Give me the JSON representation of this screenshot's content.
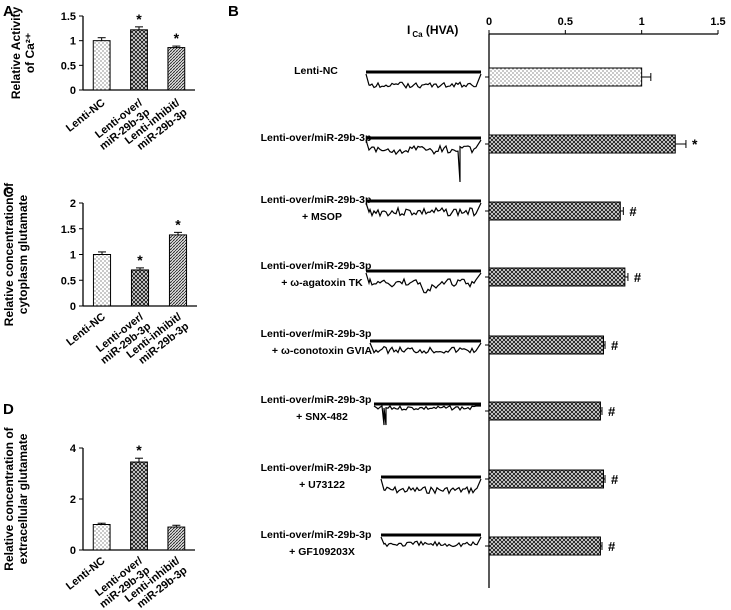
{
  "panels": {
    "A": "A",
    "B": "B",
    "C": "C",
    "D": "D"
  },
  "chart_data": [
    {
      "id": "A",
      "type": "bar",
      "ylabel_lines": [
        "Relative Activity",
        "of Ca²⁺"
      ],
      "ylim": [
        0,
        1.5
      ],
      "yticks": [
        "0",
        "0.5",
        "1",
        "1.5"
      ],
      "categories": [
        [
          "Lenti-NC"
        ],
        [
          "Lenti-over/",
          "miR-29b-3p"
        ],
        [
          "Lenti-inhibit/",
          "miR-29b-3p"
        ]
      ],
      "values": [
        1.0,
        1.22,
        0.86
      ],
      "errors": [
        0.06,
        0.06,
        0.03
      ],
      "markers": [
        "",
        "*",
        "*"
      ],
      "patterns": [
        "dots",
        "cross",
        "hatch"
      ]
    },
    {
      "id": "C",
      "type": "bar",
      "ylabel_lines": [
        "Relative concentration of",
        "cytoplasm glutamate"
      ],
      "ylim": [
        0,
        2
      ],
      "yticks": [
        "0",
        "0.5",
        "1",
        "1.5",
        "2"
      ],
      "categories": [
        [
          "Lenti-NC"
        ],
        [
          "Lenti-over/",
          "miR-29b-3p"
        ],
        [
          "Lenti-inhibit/",
          "miR-29b-3p"
        ]
      ],
      "values": [
        1.0,
        0.7,
        1.38
      ],
      "errors": [
        0.05,
        0.04,
        0.05
      ],
      "markers": [
        "",
        "*",
        "*"
      ],
      "patterns": [
        "dots",
        "cross",
        "hatch"
      ]
    },
    {
      "id": "D",
      "type": "bar",
      "ylabel_lines": [
        "Relative concentration of",
        "extracellular glutamate"
      ],
      "ylim": [
        0,
        4
      ],
      "yticks": [
        "0",
        "2",
        "4"
      ],
      "categories": [
        [
          "Lenti-NC"
        ],
        [
          "Lenti-over/",
          "miR-29b-3p"
        ],
        [
          "Lenti-inhibit/",
          "miR-29b-3p"
        ]
      ],
      "values": [
        1.0,
        3.45,
        0.9
      ],
      "errors": [
        0.05,
        0.15,
        0.07
      ],
      "markers": [
        "",
        "*",
        ""
      ],
      "patterns": [
        "dots",
        "cross",
        "hatch"
      ]
    },
    {
      "id": "B",
      "type": "bar",
      "orientation": "horizontal",
      "title": "I Ca (HVA)",
      "title_main": "I",
      "title_sub": "Ca",
      "title_rest": " (HVA)",
      "xlim": [
        0,
        1.5
      ],
      "xticks": [
        "0",
        "0.5",
        "1",
        "1.5"
      ],
      "rows": [
        {
          "label": [
            "Lenti-NC"
          ],
          "value": 1.0,
          "error": 0.06,
          "marker": "",
          "pattern": "dots"
        },
        {
          "label": [
            "Lenti-over/miR-29b-3p"
          ],
          "value": 1.22,
          "error": 0.07,
          "marker": "*",
          "pattern": "cross"
        },
        {
          "label": [
            "Lenti-over/miR-29b-3p",
            "+    MSOP"
          ],
          "value": 0.86,
          "error": 0.02,
          "marker": "#",
          "pattern": "cross"
        },
        {
          "label": [
            "Lenti-over/miR-29b-3p",
            "+ ω-agatoxin TK"
          ],
          "value": 0.89,
          "error": 0.02,
          "marker": "#",
          "pattern": "cross"
        },
        {
          "label": [
            "Lenti-over/miR-29b-3p",
            "+  ω-conotoxin GVIA"
          ],
          "value": 0.75,
          "error": 0.01,
          "marker": "#",
          "pattern": "cross"
        },
        {
          "label": [
            "Lenti-over/miR-29b-3p",
            "+   SNX-482"
          ],
          "value": 0.73,
          "error": 0.01,
          "marker": "#",
          "pattern": "cross"
        },
        {
          "label": [
            "Lenti-over/miR-29b-3p",
            "+ U73122"
          ],
          "value": 0.75,
          "error": 0.01,
          "marker": "#",
          "pattern": "cross"
        },
        {
          "label": [
            "Lenti-over/miR-29b-3p",
            "+ GF109203X"
          ],
          "value": 0.73,
          "error": 0.01,
          "marker": "#",
          "pattern": "cross"
        }
      ]
    }
  ]
}
